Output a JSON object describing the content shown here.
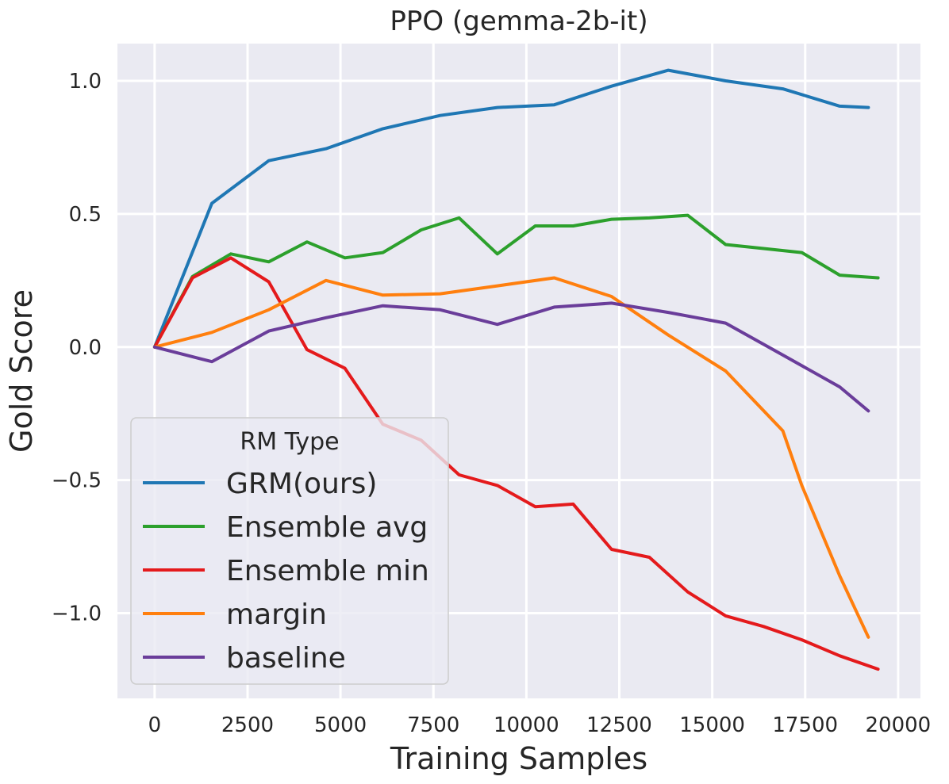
{
  "chart_data": {
    "type": "line",
    "title": "PPO (gemma-2b-it)",
    "xlabel": "Training Samples",
    "ylabel": "Gold Score",
    "xlim": [
      -1000,
      20600
    ],
    "ylim": [
      -1.32,
      1.14
    ],
    "xticks": [
      0,
      2500,
      5000,
      7500,
      10000,
      12500,
      15000,
      17500,
      20000
    ],
    "xtick_labels": [
      "0",
      "2500",
      "5000",
      "7500",
      "10000",
      "12500",
      "15000",
      "17500",
      "20000"
    ],
    "yticks": [
      -1.0,
      -0.5,
      0.0,
      0.5,
      1.0
    ],
    "ytick_labels": [
      "−1.0",
      "−0.5",
      "0.0",
      "0.5",
      "1.0"
    ],
    "grid": true,
    "legend": {
      "title": "RM Type",
      "placement": "lower-left"
    },
    "series": [
      {
        "name": "GRM(ours)",
        "color": "#1f77b4",
        "x": [
          0,
          1540,
          3070,
          4610,
          6140,
          7680,
          9220,
          10750,
          12290,
          13820,
          15360,
          16900,
          18430,
          19200
        ],
        "y": [
          0.0,
          0.54,
          0.7,
          0.745,
          0.82,
          0.87,
          0.9,
          0.91,
          0.98,
          1.04,
          1.0,
          0.97,
          0.905,
          0.9
        ]
      },
      {
        "name": "Ensemble avg",
        "color": "#2ca02c",
        "x": [
          0,
          1020,
          2050,
          3070,
          4100,
          5120,
          6140,
          7170,
          8190,
          9220,
          10240,
          11260,
          12290,
          13310,
          14340,
          15360,
          16380,
          17410,
          18430,
          19460
        ],
        "y": [
          0.0,
          0.265,
          0.35,
          0.32,
          0.395,
          0.335,
          0.355,
          0.44,
          0.485,
          0.35,
          0.455,
          0.455,
          0.48,
          0.485,
          0.495,
          0.385,
          0.37,
          0.355,
          0.27,
          0.26
        ]
      },
      {
        "name": "Ensemble min",
        "color": "#e41a1c",
        "x": [
          0,
          1020,
          2050,
          3070,
          4100,
          5120,
          6140,
          7170,
          8190,
          9220,
          10240,
          11260,
          12290,
          13310,
          14340,
          15360,
          16380,
          17410,
          18430,
          19460
        ],
        "y": [
          0.0,
          0.26,
          0.335,
          0.245,
          -0.01,
          -0.08,
          -0.29,
          -0.35,
          -0.48,
          -0.52,
          -0.6,
          -0.59,
          -0.76,
          -0.79,
          -0.92,
          -1.01,
          -1.05,
          -1.1,
          -1.16,
          -1.21
        ]
      },
      {
        "name": "margin",
        "color": "#ff7f0e",
        "x": [
          0,
          1540,
          3070,
          4610,
          6140,
          7680,
          9220,
          10750,
          12290,
          13820,
          15360,
          16900,
          17410,
          18430,
          19200
        ],
        "y": [
          0.0,
          0.055,
          0.14,
          0.25,
          0.195,
          0.2,
          0.23,
          0.26,
          0.19,
          0.045,
          -0.09,
          -0.315,
          -0.52,
          -0.86,
          -1.09
        ]
      },
      {
        "name": "baseline",
        "color": "#6a3d9a",
        "x": [
          0,
          1540,
          3070,
          4610,
          6140,
          7680,
          9220,
          10750,
          12290,
          13820,
          15360,
          16900,
          18430,
          19200
        ],
        "y": [
          0.0,
          -0.055,
          0.06,
          0.11,
          0.155,
          0.14,
          0.085,
          0.15,
          0.165,
          0.13,
          0.09,
          -0.03,
          -0.15,
          -0.24
        ]
      }
    ]
  }
}
